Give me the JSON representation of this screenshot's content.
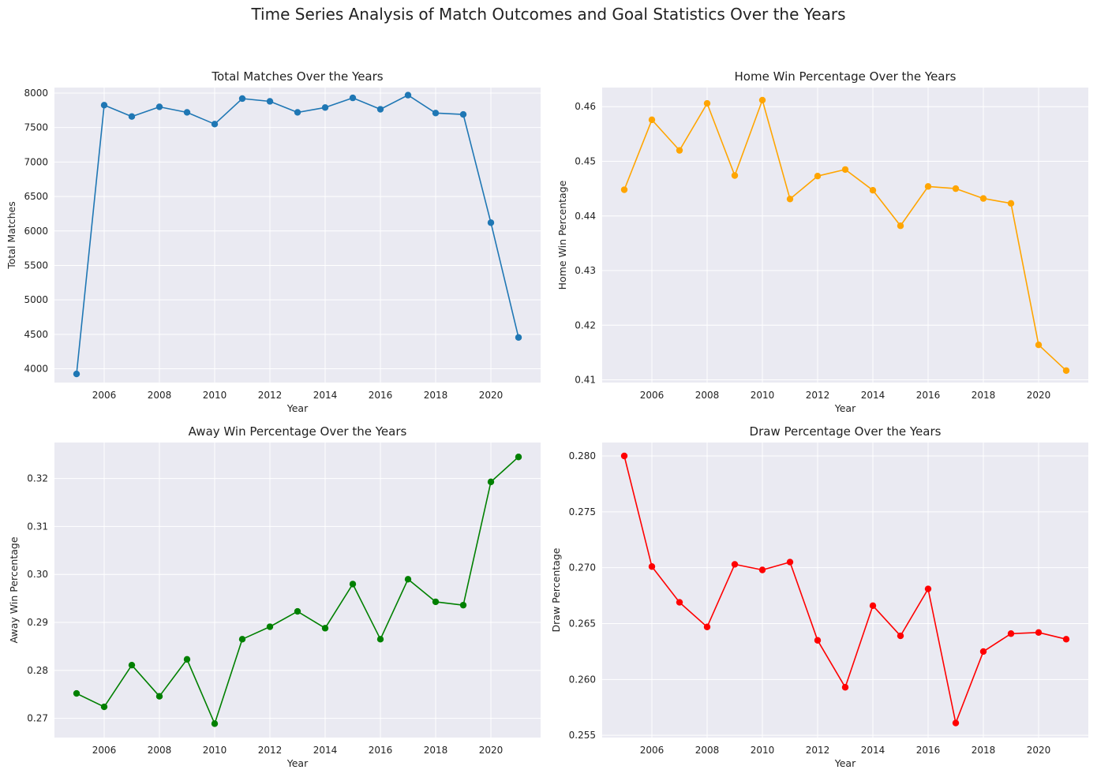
{
  "suptitle": "Time Series Analysis of Match Outcomes and Goal Statistics Over the Years",
  "chart_data": [
    {
      "type": "line",
      "title": "Total Matches Over the Years",
      "xlabel": "Year",
      "ylabel": "Total Matches",
      "color": "#1f77b4",
      "xlim": [
        2004.2,
        2021.8
      ],
      "ylim": [
        3800,
        8080
      ],
      "xticks": [
        2006,
        2008,
        2010,
        2012,
        2014,
        2016,
        2018,
        2020
      ],
      "yticks": [
        4000,
        4500,
        5000,
        5500,
        6000,
        6500,
        7000,
        7500,
        8000
      ],
      "ytick_labels": [
        "4000",
        "4500",
        "5000",
        "5500",
        "6000",
        "6500",
        "7000",
        "7500",
        "8000"
      ],
      "grid": true,
      "x": [
        2005,
        2006,
        2007,
        2008,
        2009,
        2010,
        2011,
        2012,
        2013,
        2014,
        2015,
        2016,
        2017,
        2018,
        2019,
        2020,
        2021
      ],
      "y": [
        3925,
        7825,
        7660,
        7800,
        7720,
        7550,
        7920,
        7880,
        7720,
        7790,
        7930,
        7765,
        7970,
        7710,
        7690,
        6120,
        4455
      ]
    },
    {
      "type": "line",
      "title": "Home Win Percentage Over the Years",
      "xlabel": "Year",
      "ylabel": "Home Win Percentage",
      "color": "#ffa500",
      "xlim": [
        2004.2,
        2021.8
      ],
      "ylim": [
        0.4095,
        0.4635
      ],
      "xticks": [
        2006,
        2008,
        2010,
        2012,
        2014,
        2016,
        2018,
        2020
      ],
      "yticks": [
        0.41,
        0.42,
        0.43,
        0.44,
        0.45,
        0.46
      ],
      "ytick_labels": [
        "0.41",
        "0.42",
        "0.43",
        "0.44",
        "0.45",
        "0.46"
      ],
      "grid": true,
      "x": [
        2005,
        2006,
        2007,
        2008,
        2009,
        2010,
        2011,
        2012,
        2013,
        2014,
        2015,
        2016,
        2017,
        2018,
        2019,
        2020,
        2021
      ],
      "y": [
        0.4448,
        0.4576,
        0.452,
        0.4606,
        0.4474,
        0.4612,
        0.4431,
        0.4473,
        0.4485,
        0.4447,
        0.4382,
        0.4454,
        0.445,
        0.4432,
        0.4423,
        0.4164,
        0.4117
      ]
    },
    {
      "type": "line",
      "title": "Away Win Percentage Over the Years",
      "xlabel": "Year",
      "ylabel": "Away Win Percentage",
      "color": "#008000",
      "xlim": [
        2004.2,
        2021.8
      ],
      "ylim": [
        0.266,
        0.3275
      ],
      "xticks": [
        2006,
        2008,
        2010,
        2012,
        2014,
        2016,
        2018,
        2020
      ],
      "yticks": [
        0.27,
        0.28,
        0.29,
        0.3,
        0.31,
        0.32
      ],
      "ytick_labels": [
        "0.27",
        "0.28",
        "0.29",
        "0.30",
        "0.31",
        "0.32"
      ],
      "grid": true,
      "x": [
        2005,
        2006,
        2007,
        2008,
        2009,
        2010,
        2011,
        2012,
        2013,
        2014,
        2015,
        2016,
        2017,
        2018,
        2019,
        2020,
        2021
      ],
      "y": [
        0.2752,
        0.2724,
        0.2811,
        0.2746,
        0.2823,
        0.2689,
        0.2865,
        0.2891,
        0.2923,
        0.2888,
        0.298,
        0.2865,
        0.299,
        0.2943,
        0.2936,
        0.3193,
        0.3245
      ]
    },
    {
      "type": "line",
      "title": "Draw Percentage Over the Years",
      "xlabel": "Year",
      "ylabel": "Draw Percentage",
      "color": "#ff0000",
      "xlim": [
        2004.2,
        2021.8
      ],
      "ylim": [
        0.2548,
        0.2812
      ],
      "xticks": [
        2006,
        2008,
        2010,
        2012,
        2014,
        2016,
        2018,
        2020
      ],
      "yticks": [
        0.255,
        0.26,
        0.265,
        0.27,
        0.275,
        0.28
      ],
      "ytick_labels": [
        "0.255",
        "0.260",
        "0.265",
        "0.270",
        "0.275",
        "0.280"
      ],
      "grid": true,
      "x": [
        2005,
        2006,
        2007,
        2008,
        2009,
        2010,
        2011,
        2012,
        2013,
        2014,
        2015,
        2016,
        2017,
        2018,
        2019,
        2020,
        2021
      ],
      "y": [
        0.28,
        0.2701,
        0.2669,
        0.2647,
        0.2703,
        0.2698,
        0.2705,
        0.2635,
        0.2593,
        0.2666,
        0.2639,
        0.2681,
        0.2561,
        0.2625,
        0.2641,
        0.2642,
        0.2636
      ]
    }
  ]
}
